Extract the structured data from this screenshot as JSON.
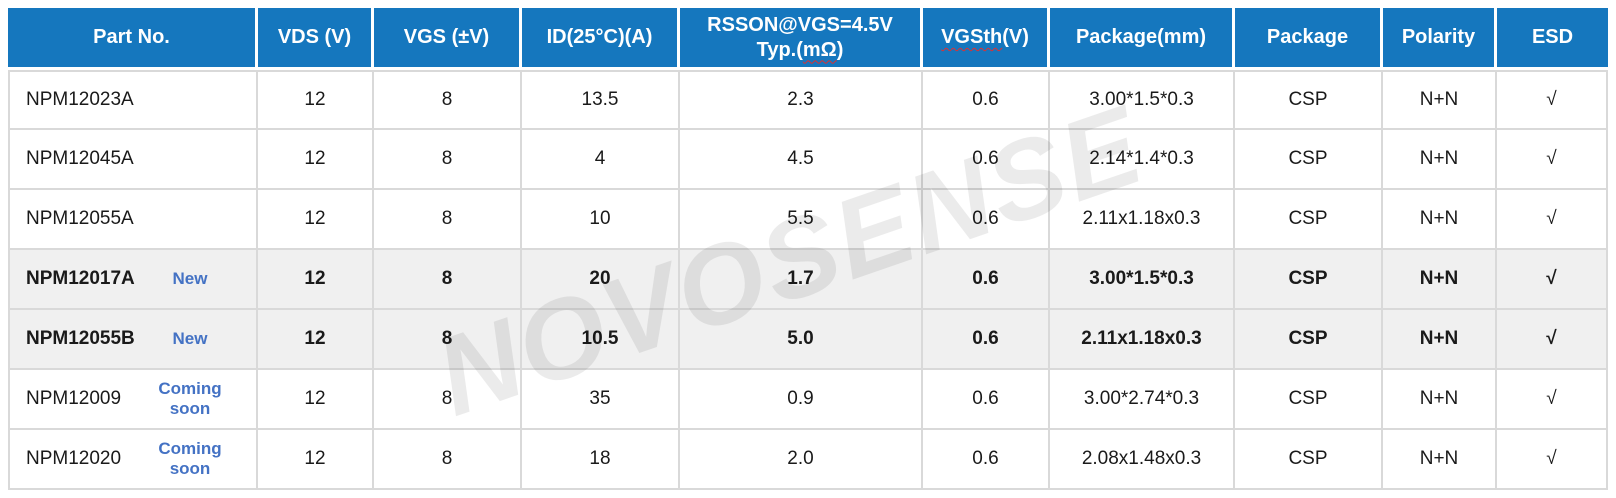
{
  "watermark": "NOVOSENSE",
  "colors": {
    "header_bg": "#1577BE",
    "header_text": "#FFFFFF",
    "body_text": "#1A1A1A",
    "border": "#D9D9D9",
    "highlight_row_bg": "#F0F0F0",
    "badge_blue": "#4472C4",
    "spellcheck_red": "#E03030"
  },
  "header": {
    "part": "Part No.",
    "vds": "VDS (V)",
    "vgs": "VGS (±V)",
    "id": "ID(25°C)(A)",
    "rsson_line1": "RSSON@VGS=4.5V",
    "rsson_line2_pre": "Typ.(",
    "rsson_line2_wavy": "mΩ",
    "rsson_line2_post": ")",
    "vgsth_wavy": "VGSth",
    "vgsth_post": "(V)",
    "pkgmm": "Package(mm)",
    "pkg": "Package",
    "pol": "Polarity",
    "esd": "ESD"
  },
  "rows": [
    {
      "part": "NPM12023A",
      "badge": "",
      "highlight": false,
      "vds": "12",
      "vgs": "8",
      "id": "13.5",
      "rsson": "2.3",
      "vgsth": "0.6",
      "pkgmm": "3.00*1.5*0.3",
      "pkg": "CSP",
      "pol": "N+N",
      "esd": "√"
    },
    {
      "part": "NPM12045A",
      "badge": "",
      "highlight": false,
      "vds": "12",
      "vgs": "8",
      "id": "4",
      "rsson": "4.5",
      "vgsth": "0.6",
      "pkgmm": "2.14*1.4*0.3",
      "pkg": "CSP",
      "pol": "N+N",
      "esd": "√"
    },
    {
      "part": "NPM12055A",
      "badge": "",
      "highlight": false,
      "vds": "12",
      "vgs": "8",
      "id": "10",
      "rsson": "5.5",
      "vgsth": "0.6",
      "pkgmm": "2.11x1.18x0.3",
      "pkg": "CSP",
      "pol": "N+N",
      "esd": "√"
    },
    {
      "part": "NPM12017A",
      "badge": "New",
      "highlight": true,
      "vds": "12",
      "vgs": "8",
      "id": "20",
      "rsson": "1.7",
      "vgsth": "0.6",
      "pkgmm": "3.00*1.5*0.3",
      "pkg": "CSP",
      "pol": "N+N",
      "esd": "√"
    },
    {
      "part": "NPM12055B",
      "badge": "New",
      "highlight": true,
      "vds": "12",
      "vgs": "8",
      "id": "10.5",
      "rsson": "5.0",
      "vgsth": "0.6",
      "pkgmm": "2.11x1.18x0.3",
      "pkg": "CSP",
      "pol": "N+N",
      "esd": "√"
    },
    {
      "part": "NPM12009",
      "badge": "Coming soon",
      "highlight": false,
      "vds": "12",
      "vgs": "8",
      "id": "35",
      "rsson": "0.9",
      "vgsth": "0.6",
      "pkgmm": "3.00*2.74*0.3",
      "pkg": "CSP",
      "pol": "N+N",
      "esd": "√"
    },
    {
      "part": "NPM12020",
      "badge": "Coming soon",
      "highlight": false,
      "vds": "12",
      "vgs": "8",
      "id": "18",
      "rsson": "2.0",
      "vgsth": "0.6",
      "pkgmm": "2.08x1.48x0.3",
      "pkg": "CSP",
      "pol": "N+N",
      "esd": "√"
    }
  ],
  "column_keys": [
    "vds",
    "vgs",
    "id",
    "rsson",
    "vgsth",
    "pkgmm",
    "pkg",
    "pol",
    "esd"
  ]
}
